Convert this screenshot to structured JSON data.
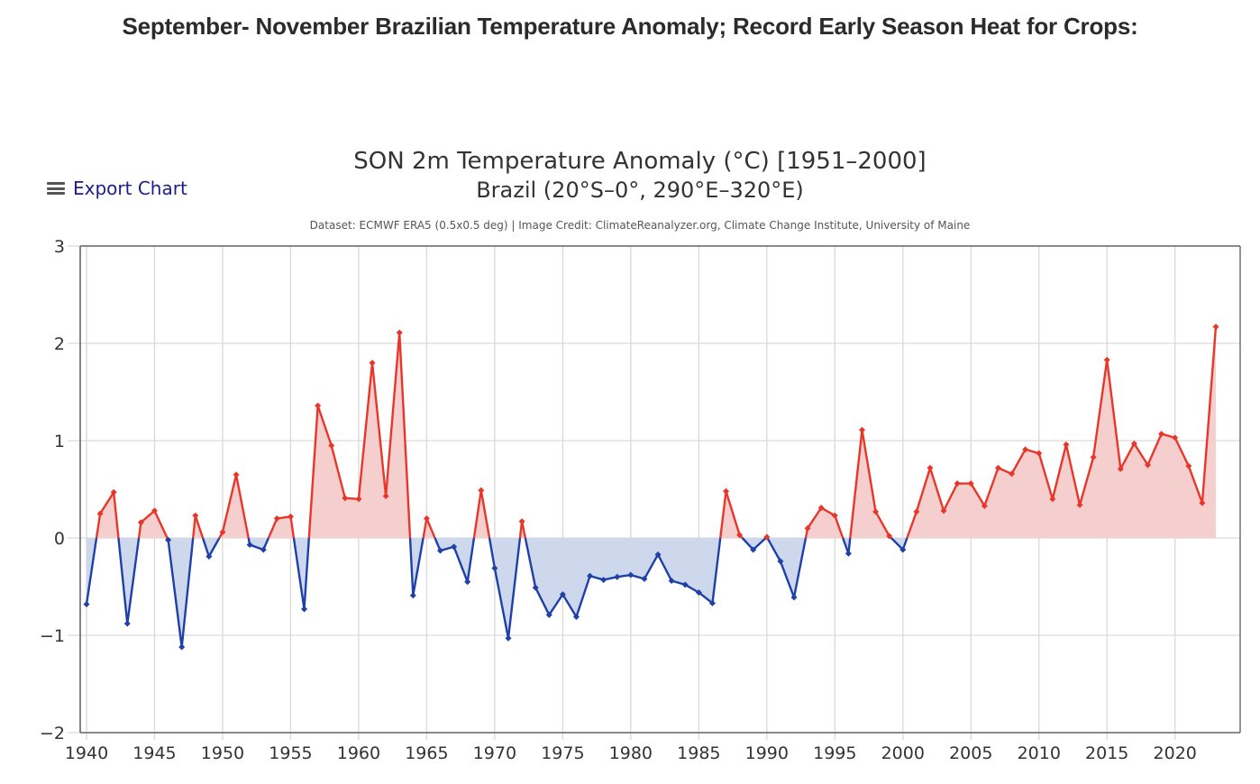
{
  "page": {
    "heading": "September- November Brazilian Temperature Anomaly; Record Early Season Heat for Crops:"
  },
  "toolbar": {
    "export_icon": "menu-icon",
    "export_label": "Export Chart"
  },
  "chart_data": {
    "type": "area",
    "title": "SON 2m Temperature Anomaly (°C) [1951–2000]",
    "subtitle": "Brazil (20°S–0°, 290°E–320°E)",
    "credit": "Dataset: ECMWF ERA5 (0.5x0.5 deg) | Image Credit: ClimateReanalyzer.org, Climate Change Institute, University of Maine",
    "xlabel": "",
    "ylabel": "",
    "xlim": [
      1940,
      2023
    ],
    "ylim": [
      -2,
      3
    ],
    "grid": true,
    "legend": "none",
    "x_ticks": [
      1940,
      1945,
      1950,
      1955,
      1960,
      1965,
      1970,
      1975,
      1980,
      1985,
      1990,
      1995,
      2000,
      2005,
      2010,
      2015,
      2020
    ],
    "y_ticks": [
      3,
      2,
      1,
      0,
      -1,
      -2
    ],
    "y_tick_labels": [
      "3",
      "2",
      "1",
      "0",
      "−1",
      "−2"
    ],
    "colors": {
      "positive_line": "#e8372a",
      "positive_fill": "#f5cfcd",
      "negative_line": "#1e40a8",
      "negative_fill": "#cdd8ec",
      "grid": "#d9d9d9",
      "axis": "#666666"
    },
    "series": [
      {
        "name": "SON 2m Temperature Anomaly",
        "x": [
          1940,
          1941,
          1942,
          1943,
          1944,
          1945,
          1946,
          1947,
          1948,
          1949,
          1950,
          1951,
          1952,
          1953,
          1954,
          1955,
          1956,
          1957,
          1958,
          1959,
          1960,
          1961,
          1962,
          1963,
          1964,
          1965,
          1966,
          1967,
          1968,
          1969,
          1970,
          1971,
          1972,
          1973,
          1974,
          1975,
          1976,
          1977,
          1978,
          1979,
          1980,
          1981,
          1982,
          1983,
          1984,
          1985,
          1986,
          1987,
          1988,
          1989,
          1990,
          1991,
          1992,
          1993,
          1994,
          1995,
          1996,
          1997,
          1998,
          1999,
          2000,
          2001,
          2002,
          2003,
          2004,
          2005,
          2006,
          2007,
          2008,
          2009,
          2010,
          2011,
          2012,
          2013,
          2014,
          2015,
          2016,
          2017,
          2018,
          2019,
          2020,
          2021,
          2022,
          2023
        ],
        "values": [
          -0.68,
          0.25,
          0.47,
          -0.88,
          0.16,
          0.28,
          -0.02,
          -1.12,
          0.23,
          -0.19,
          0.06,
          0.65,
          -0.07,
          -0.12,
          0.2,
          0.22,
          -0.73,
          1.36,
          0.95,
          0.41,
          0.4,
          1.8,
          0.43,
          2.11,
          -0.59,
          0.2,
          -0.13,
          -0.09,
          -0.45,
          0.49,
          -0.31,
          -1.03,
          0.17,
          -0.51,
          -0.79,
          -0.58,
          -0.81,
          -0.39,
          -0.43,
          -0.4,
          -0.38,
          -0.42,
          -0.17,
          -0.44,
          -0.48,
          -0.56,
          -0.67,
          0.48,
          0.03,
          -0.12,
          0.01,
          -0.24,
          -0.61,
          0.1,
          0.31,
          0.23,
          -0.16,
          1.11,
          0.27,
          0.02,
          -0.12,
          0.27,
          0.72,
          0.28,
          0.56,
          0.56,
          0.33,
          0.72,
          0.66,
          0.91,
          0.87,
          0.4,
          0.96,
          0.34,
          0.83,
          1.83,
          0.71,
          0.97,
          0.75,
          1.07,
          1.03,
          0.74,
          0.36,
          2.17
        ]
      }
    ]
  }
}
